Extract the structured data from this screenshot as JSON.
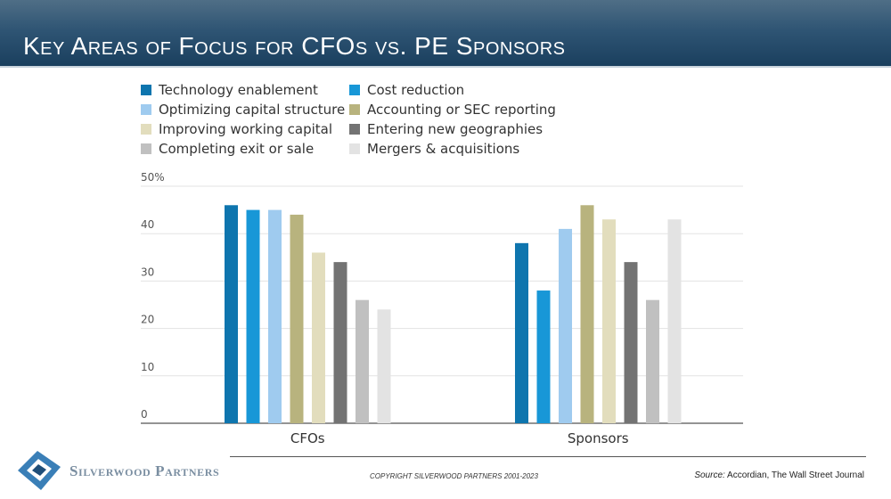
{
  "title": "Key Areas of Focus for CFOs vs. PE Sponsors",
  "brand": "Silverwood Partners",
  "copyright": "COPYRIGHT SILVERWOOD PARTNERS 2001-2023",
  "source": {
    "label": "Source:",
    "text": "Accordian, The Wall Street Journal"
  },
  "colors": {
    "title_bar": "#2f5574",
    "grid": "#e3e3e3",
    "axis": "#555555",
    "logo_outer": "#3a7fb7",
    "logo_inner": "#1f4e79"
  },
  "chart_data": {
    "type": "bar",
    "categories": [
      "CFOs",
      "Sponsors"
    ],
    "ylim": [
      0,
      50
    ],
    "yticks": [
      0,
      10,
      20,
      30,
      40,
      50
    ],
    "ytick_labels": [
      "0",
      "10",
      "20",
      "30",
      "40",
      "50%"
    ],
    "grid": true,
    "legend_position": "top",
    "series": [
      {
        "name": "Technology enablement",
        "color": "#0e75ae",
        "values": [
          46,
          38
        ]
      },
      {
        "name": "Cost reduction",
        "color": "#1897d7",
        "values": [
          45,
          28
        ]
      },
      {
        "name": "Optimizing capital structure",
        "color": "#9fcbef",
        "values": [
          45,
          41
        ]
      },
      {
        "name": "Accounting or SEC reporting",
        "color": "#b8b37e",
        "values": [
          44,
          46
        ]
      },
      {
        "name": "Improving working capital",
        "color": "#e2ddbd",
        "values": [
          36,
          43
        ]
      },
      {
        "name": "Entering new geographies",
        "color": "#737373",
        "values": [
          34,
          34
        ]
      },
      {
        "name": "Completing exit or sale",
        "color": "#c0c0c0",
        "values": [
          26,
          26
        ]
      },
      {
        "name": "Mergers & acquisitions",
        "color": "#e3e3e3",
        "values": [
          24,
          43
        ]
      }
    ]
  }
}
